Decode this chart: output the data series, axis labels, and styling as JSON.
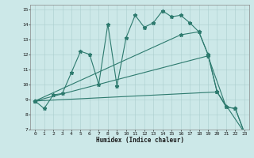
{
  "xlabel": "Humidex (Indice chaleur)",
  "background_color": "#cce8e8",
  "line_color": "#2d7a6e",
  "xlim": [
    -0.5,
    23.5
  ],
  "ylim": [
    7,
    15.3
  ],
  "xticks": [
    0,
    1,
    2,
    3,
    4,
    5,
    6,
    7,
    8,
    9,
    10,
    11,
    12,
    13,
    14,
    15,
    16,
    17,
    18,
    19,
    20,
    21,
    22,
    23
  ],
  "yticks": [
    7,
    8,
    9,
    10,
    11,
    12,
    13,
    14,
    15
  ],
  "lines": [
    {
      "x": [
        0,
        1,
        2,
        3,
        4,
        5,
        6,
        7,
        8,
        9,
        10,
        11,
        12,
        13,
        14,
        15,
        16,
        17,
        18,
        19,
        20
      ],
      "y": [
        8.9,
        8.4,
        9.3,
        9.4,
        10.8,
        12.2,
        12.0,
        10.0,
        14.0,
        9.9,
        13.1,
        14.6,
        13.8,
        14.1,
        14.9,
        14.5,
        14.6,
        14.1,
        13.5,
        12.0,
        9.5
      ]
    },
    {
      "x": [
        0,
        20,
        23
      ],
      "y": [
        8.9,
        9.5,
        6.8
      ]
    },
    {
      "x": [
        0,
        19,
        21,
        22,
        23
      ],
      "y": [
        8.9,
        11.9,
        8.5,
        8.4,
        6.8
      ]
    },
    {
      "x": [
        0,
        16,
        18,
        19,
        20,
        21,
        22,
        23
      ],
      "y": [
        8.9,
        13.3,
        13.5,
        12.0,
        9.5,
        8.5,
        8.4,
        6.8
      ]
    }
  ]
}
